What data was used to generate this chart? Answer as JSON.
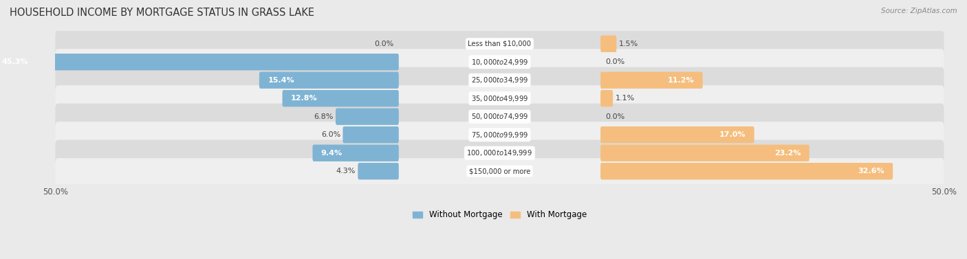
{
  "title": "HOUSEHOLD INCOME BY MORTGAGE STATUS IN GRASS LAKE",
  "source": "Source: ZipAtlas.com",
  "categories": [
    "Less than $10,000",
    "$10,000 to $24,999",
    "$25,000 to $34,999",
    "$35,000 to $49,999",
    "$50,000 to $74,999",
    "$75,000 to $99,999",
    "$100,000 to $149,999",
    "$150,000 or more"
  ],
  "without_mortgage": [
    0.0,
    45.3,
    15.4,
    12.8,
    6.8,
    6.0,
    9.4,
    4.3
  ],
  "with_mortgage": [
    1.5,
    0.0,
    11.2,
    1.1,
    0.0,
    17.0,
    23.2,
    32.6
  ],
  "color_without": "#7fb3d3",
  "color_with": "#f5be7e",
  "xlim": 50.0,
  "legend_labels": [
    "Without Mortgage",
    "With Mortgage"
  ],
  "bg_color": "#eaeaea",
  "row_color_dark": "#dcdcdc",
  "row_color_light": "#efefef"
}
